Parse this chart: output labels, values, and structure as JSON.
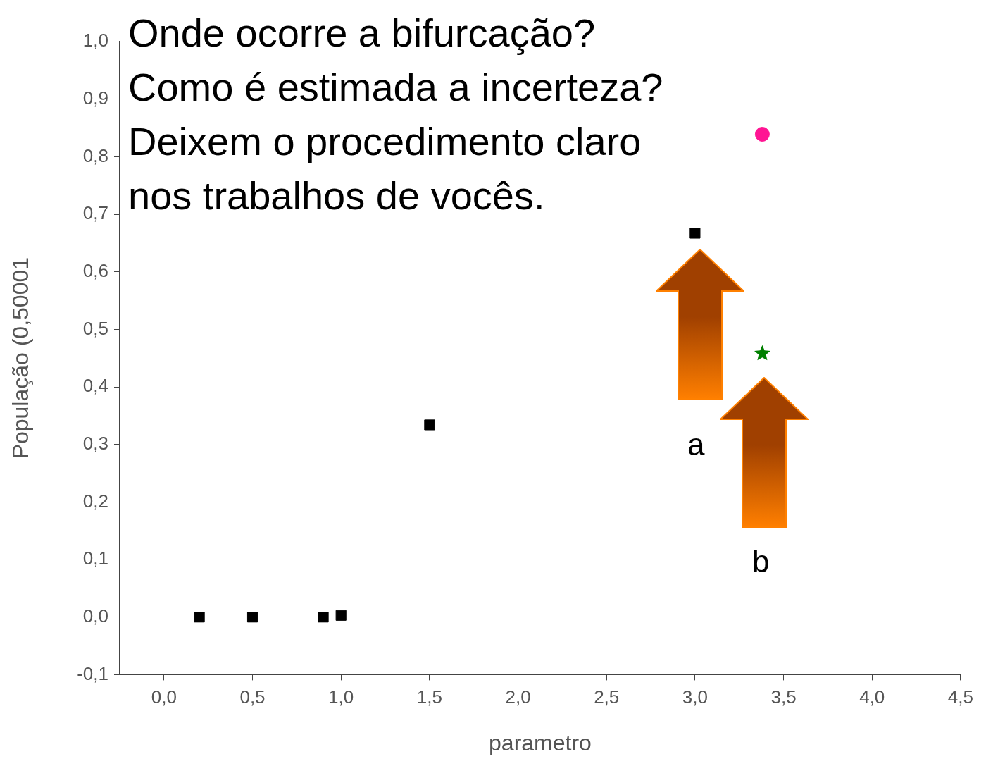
{
  "chart_data": {
    "type": "scatter",
    "xlabel": "parametro",
    "ylabel": "População (0,50001",
    "annotations": [
      "Onde ocorre a bifurcação?",
      "Como é estimada a incerteza?",
      "Deixem o procedimento claro",
      "nos trabalhos de vocês.",
      "a",
      "b"
    ],
    "xlim": [
      -0.25,
      4.5
    ],
    "xticks": [
      {
        "value": 0,
        "label": "0,0"
      },
      {
        "value": 0.5,
        "label": "0,5"
      },
      {
        "value": 1,
        "label": "1,0"
      },
      {
        "value": 1.5,
        "label": "1,5"
      },
      {
        "value": 2,
        "label": "2,0"
      },
      {
        "value": 2.5,
        "label": "2,5"
      },
      {
        "value": 3,
        "label": "3,0"
      },
      {
        "value": 3.5,
        "label": "3,5"
      },
      {
        "value": 4,
        "label": "4,0"
      },
      {
        "value": 4.5,
        "label": "4,5"
      }
    ],
    "ylim": [
      -0.1,
      1.0
    ],
    "yticks": [
      {
        "value": -0.1,
        "label": "-0,1"
      },
      {
        "value": 0,
        "label": "0,0"
      },
      {
        "value": 0.1,
        "label": "0,1"
      },
      {
        "value": 0.2,
        "label": "0,2"
      },
      {
        "value": 0.3,
        "label": "0,3"
      },
      {
        "value": 0.4,
        "label": "0,4"
      },
      {
        "value": 0.5,
        "label": "0,5"
      },
      {
        "value": 0.6,
        "label": "0,6"
      },
      {
        "value": 0.7,
        "label": "0,7"
      },
      {
        "value": 0.8,
        "label": "0,8"
      },
      {
        "value": 0.9,
        "label": "0,9"
      },
      {
        "value": 1.0,
        "label": "1,0"
      }
    ],
    "grid": false,
    "legend": false,
    "series": [
      {
        "color": "#000000",
        "marker": "square",
        "x": [
          0.2,
          0.5,
          0.9,
          1.0,
          1.5,
          3.0
        ],
        "values": [
          0,
          0,
          0,
          0.003,
          0.334,
          0.667
        ]
      },
      {
        "color": "#ff1493",
        "marker": "circle",
        "x": [
          3.38
        ],
        "values": [
          0.839
        ]
      },
      {
        "color": "#008000",
        "marker": "star",
        "x": [
          3.38
        ],
        "values": [
          0.458
        ]
      }
    ]
  }
}
